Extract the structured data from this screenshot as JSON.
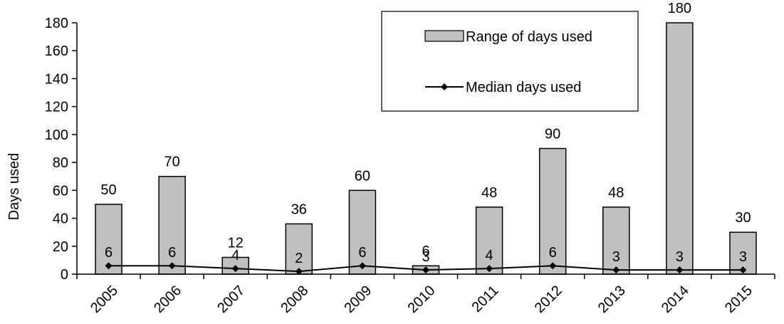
{
  "chart_data": {
    "type": "bar",
    "categories": [
      "2005",
      "2006",
      "2007",
      "2008",
      "2009",
      "2010",
      "2011",
      "2012",
      "2013",
      "2014",
      "2015"
    ],
    "series": [
      {
        "name": "Range of days used",
        "type": "bar",
        "values": [
          50,
          70,
          12,
          36,
          60,
          6,
          48,
          90,
          48,
          180,
          30
        ],
        "color": "#c0c0c0"
      },
      {
        "name": "Median days used",
        "type": "line",
        "values": [
          6,
          6,
          4,
          2,
          6,
          3,
          4,
          6,
          3,
          3,
          3
        ],
        "color": "#000000"
      }
    ],
    "ylabel": "Days used",
    "xlabel": "",
    "ylim": [
      0,
      180
    ],
    "yticks": [
      "0",
      "20",
      "40",
      "60",
      "80",
      "100",
      "120",
      "140",
      "160",
      "180"
    ],
    "legend_position": "top-right",
    "grid": false
  }
}
